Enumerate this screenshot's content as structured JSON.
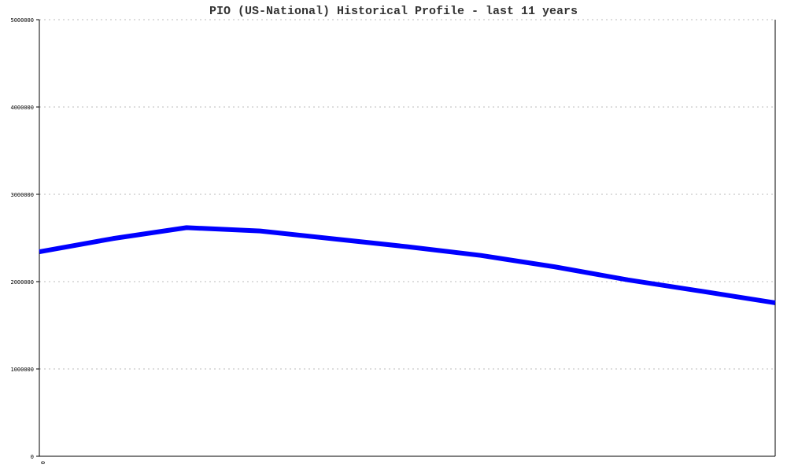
{
  "chart_data": {
    "type": "line",
    "title": "PIO (US-National) Historical Profile - last 11 years",
    "xlabel": "",
    "ylabel": "",
    "x_tick_labels": [
      "0"
    ],
    "y_tick_labels": [
      "0",
      "1000000",
      "2000000",
      "3000000",
      "4000000",
      "5000000"
    ],
    "ylim": [
      0,
      5000000
    ],
    "grid": true,
    "x": [
      0,
      1,
      2,
      3,
      4,
      5,
      6,
      7,
      8,
      9,
      10
    ],
    "series": [
      {
        "values": [
          2342000,
          2493000,
          2618000,
          2580000,
          2490000,
          2400000,
          2300000,
          2170000,
          2020000,
          1890000,
          1757000
        ],
        "color": "#0000ff"
      }
    ]
  }
}
